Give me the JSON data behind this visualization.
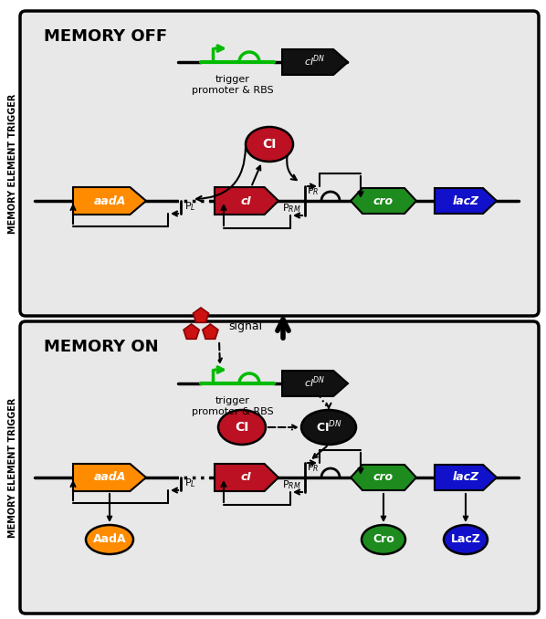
{
  "orange": "#FF8C00",
  "red_dark": "#BB1122",
  "green": "#1E8B1E",
  "blue": "#1111CC",
  "black": "#111111",
  "signal_red": "#CC1111",
  "panel_bg": "#E8E8E8",
  "title_off": "MEMORY OFF",
  "title_on": "MEMORY ON",
  "side_label": "MEMORY ELEMENT TRIGGER",
  "trig_label1": "trigger",
  "trig_label2": "promoter & RBS"
}
